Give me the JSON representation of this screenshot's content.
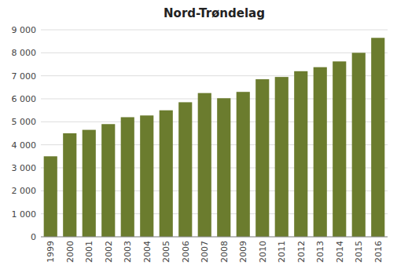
{
  "chart_data": {
    "type": "bar",
    "title": "Nord-Trøndelag",
    "categories": [
      "1999",
      "2000",
      "2001",
      "2002",
      "2003",
      "2004",
      "2005",
      "2006",
      "2007",
      "2008",
      "2009",
      "2010",
      "2011",
      "2012",
      "2013",
      "2014",
      "2015",
      "2016"
    ],
    "values": [
      3500,
      4500,
      4650,
      4900,
      5200,
      5275,
      5500,
      5850,
      6250,
      6025,
      6300,
      6850,
      6950,
      7200,
      7375,
      7625,
      8000,
      8650
    ],
    "color": "#6b7c2e",
    "ylim": [
      0,
      9000
    ],
    "yticks": [
      0,
      {
        "value": 1000,
        "label": "1 000"
      },
      {
        "value": 2000,
        "label": "2 000"
      },
      {
        "value": 3000,
        "label": "3 000"
      },
      {
        "value": 4000,
        "label": "4 000"
      },
      {
        "value": 5000,
        "label": "5 000"
      },
      {
        "value": 6000,
        "label": "6 000"
      },
      {
        "value": 7000,
        "label": "7 000"
      },
      {
        "value": 8000,
        "label": "8 000"
      },
      {
        "value": 9000,
        "label": "9 000"
      }
    ],
    "grid": true
  }
}
